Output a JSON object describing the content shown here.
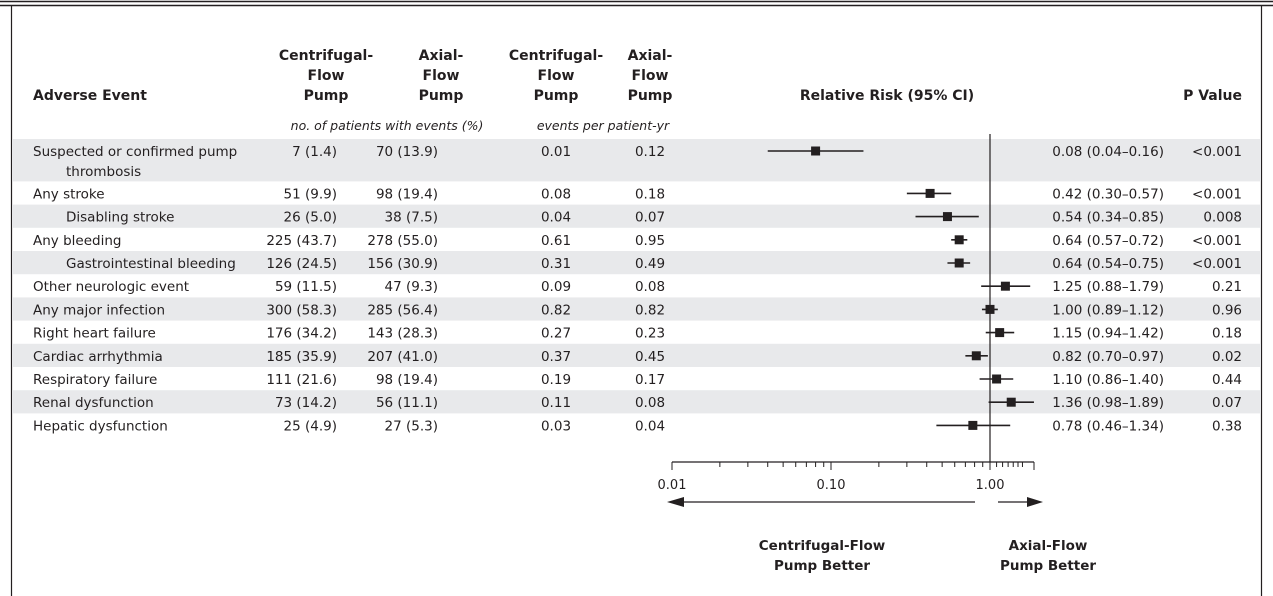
{
  "chart_data": {
    "type": "table",
    "columns": {
      "event": "Adverse Event",
      "cf_pump": [
        "Centrifugal-",
        "Flow",
        "Pump"
      ],
      "ax_pump": [
        "Axial-",
        "Flow",
        "Pump"
      ],
      "cf_rate": [
        "Centrifugal-",
        "Flow",
        "Pump"
      ],
      "ax_rate": [
        "Axial-",
        "Flow",
        "Pump"
      ],
      "rr": "Relative Risk (95% CI)",
      "p": "P Value"
    },
    "subheaders": {
      "patients": "no. of patients with events (%)",
      "rate": "events per patient-yr"
    },
    "rows": [
      {
        "event": [
          "Suspected or confirmed pump",
          "thrombosis"
        ],
        "indent": false,
        "cf": "7 (1.4)",
        "ax": "70 (13.9)",
        "cf_rate": "0.01",
        "ax_rate": "0.12",
        "rr": 0.08,
        "lo": 0.04,
        "hi": 0.16,
        "rr_text": "0.08 (0.04–0.16)",
        "p": "<0.001"
      },
      {
        "event": [
          "Any stroke"
        ],
        "indent": false,
        "cf": "51 (9.9)",
        "ax": "98 (19.4)",
        "cf_rate": "0.08",
        "ax_rate": "0.18",
        "rr": 0.42,
        "lo": 0.3,
        "hi": 0.57,
        "rr_text": "0.42 (0.30–0.57)",
        "p": "<0.001"
      },
      {
        "event": [
          "Disabling stroke"
        ],
        "indent": true,
        "cf": "26 (5.0)",
        "ax": "38 (7.5)",
        "cf_rate": "0.04",
        "ax_rate": "0.07",
        "rr": 0.54,
        "lo": 0.34,
        "hi": 0.85,
        "rr_text": "0.54 (0.34–0.85)",
        "p": "0.008"
      },
      {
        "event": [
          "Any bleeding"
        ],
        "indent": false,
        "cf": "225 (43.7)",
        "ax": "278 (55.0)",
        "cf_rate": "0.61",
        "ax_rate": "0.95",
        "rr": 0.64,
        "lo": 0.57,
        "hi": 0.72,
        "rr_text": "0.64 (0.57–0.72)",
        "p": "<0.001"
      },
      {
        "event": [
          "Gastrointestinal bleeding"
        ],
        "indent": true,
        "cf": "126 (24.5)",
        "ax": "156 (30.9)",
        "cf_rate": "0.31",
        "ax_rate": "0.49",
        "rr": 0.64,
        "lo": 0.54,
        "hi": 0.75,
        "rr_text": "0.64 (0.54–0.75)",
        "p": "<0.001"
      },
      {
        "event": [
          "Other neurologic event"
        ],
        "indent": false,
        "cf": "59 (11.5)",
        "ax": "47 (9.3)",
        "cf_rate": "0.09",
        "ax_rate": "0.08",
        "rr": 1.25,
        "lo": 0.88,
        "hi": 1.79,
        "rr_text": "1.25 (0.88–1.79)",
        "p": "0.21"
      },
      {
        "event": [
          "Any major infection"
        ],
        "indent": false,
        "cf": "300 (58.3)",
        "ax": "285 (56.4)",
        "cf_rate": "0.82",
        "ax_rate": "0.82",
        "rr": 1.0,
        "lo": 0.89,
        "hi": 1.12,
        "rr_text": "1.00 (0.89–1.12)",
        "p": "0.96"
      },
      {
        "event": [
          "Right heart failure"
        ],
        "indent": false,
        "cf": "176 (34.2)",
        "ax": "143 (28.3)",
        "cf_rate": "0.27",
        "ax_rate": "0.23",
        "rr": 1.15,
        "lo": 0.94,
        "hi": 1.42,
        "rr_text": "1.15 (0.94–1.42)",
        "p": "0.18"
      },
      {
        "event": [
          "Cardiac arrhythmia"
        ],
        "indent": false,
        "cf": "185 (35.9)",
        "ax": "207 (41.0)",
        "cf_rate": "0.37",
        "ax_rate": "0.45",
        "rr": 0.82,
        "lo": 0.7,
        "hi": 0.97,
        "rr_text": "0.82 (0.70–0.97)",
        "p": "0.02"
      },
      {
        "event": [
          "Respiratory failure"
        ],
        "indent": false,
        "cf": "111 (21.6)",
        "ax": "98 (19.4)",
        "cf_rate": "0.19",
        "ax_rate": "0.17",
        "rr": 1.1,
        "lo": 0.86,
        "hi": 1.4,
        "rr_text": "1.10 (0.86–1.40)",
        "p": "0.44"
      },
      {
        "event": [
          "Renal dysfunction"
        ],
        "indent": false,
        "cf": "73 (14.2)",
        "ax": "56 (11.1)",
        "cf_rate": "0.11",
        "ax_rate": "0.08",
        "rr": 1.36,
        "lo": 0.98,
        "hi": 1.89,
        "rr_text": "1.36 (0.98–1.89)",
        "p": "0.07"
      },
      {
        "event": [
          "Hepatic dysfunction"
        ],
        "indent": false,
        "cf": "25 (4.9)",
        "ax": "27 (5.3)",
        "cf_rate": "0.03",
        "ax_rate": "0.04",
        "rr": 0.78,
        "lo": 0.46,
        "hi": 1.34,
        "rr_text": "0.78 (0.46–1.34)",
        "p": "0.38"
      }
    ],
    "axis": {
      "scale": "log",
      "range": [
        0.01,
        1.6
      ],
      "ticks": [
        0.01,
        0.1,
        1.0
      ],
      "tick_labels": [
        "0.01",
        "0.10",
        "1.00"
      ],
      "reference_line": 1.0
    },
    "direction_labels": {
      "left": [
        "Centrifugal-Flow",
        "Pump Better"
      ],
      "right": [
        "Axial-Flow",
        "Pump Better"
      ]
    }
  },
  "colors": {
    "ink": "#231f20",
    "row_shading": "#e8e9eb",
    "rule": "#231f20"
  }
}
